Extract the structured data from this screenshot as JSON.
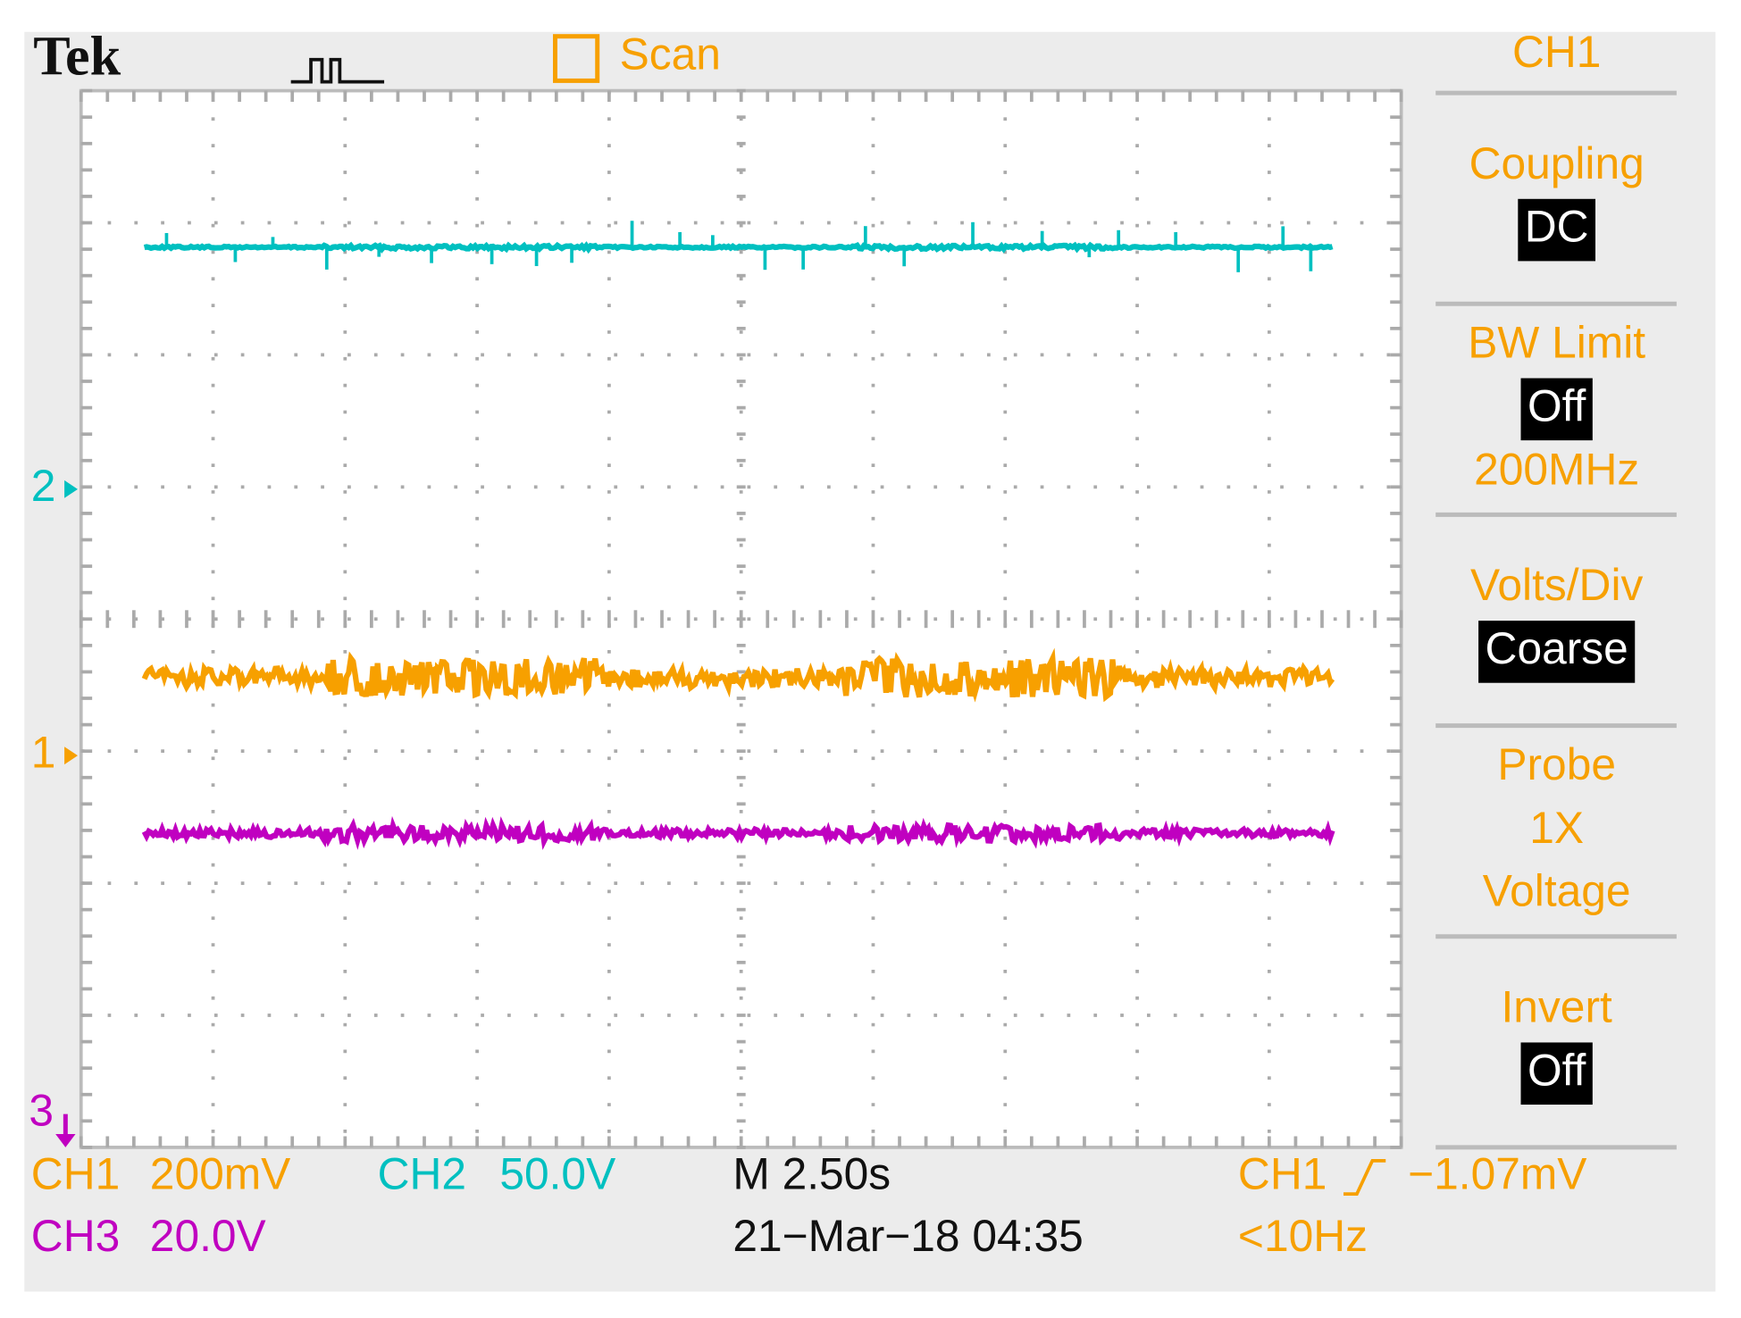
{
  "header": {
    "logo": "Tek",
    "mode": "Scan"
  },
  "markers": {
    "ch2": "2",
    "ch1": "1",
    "ch3": "3"
  },
  "menu": {
    "title": "CH1",
    "items": [
      {
        "label": "Coupling",
        "value": "DC"
      },
      {
        "label": "BW Limit",
        "value": "Off",
        "extra": "200MHz"
      },
      {
        "label": "Volts/Div",
        "value": "Coarse"
      },
      {
        "label": "Probe",
        "lines": [
          "1X",
          "Voltage"
        ]
      },
      {
        "label": "Invert",
        "value": "Off"
      }
    ]
  },
  "status": {
    "ch1": {
      "name": "CH1",
      "scale": "200mV"
    },
    "ch2": {
      "name": "CH2",
      "scale": "50.0V"
    },
    "ch3": {
      "name": "CH3",
      "scale": "20.0V"
    },
    "timebase": "M 2.50s",
    "datetime": "21−Mar−18 04:35",
    "trigger": {
      "source": "CH1",
      "level": "−1.07mV",
      "frequency": "<10Hz"
    }
  }
}
